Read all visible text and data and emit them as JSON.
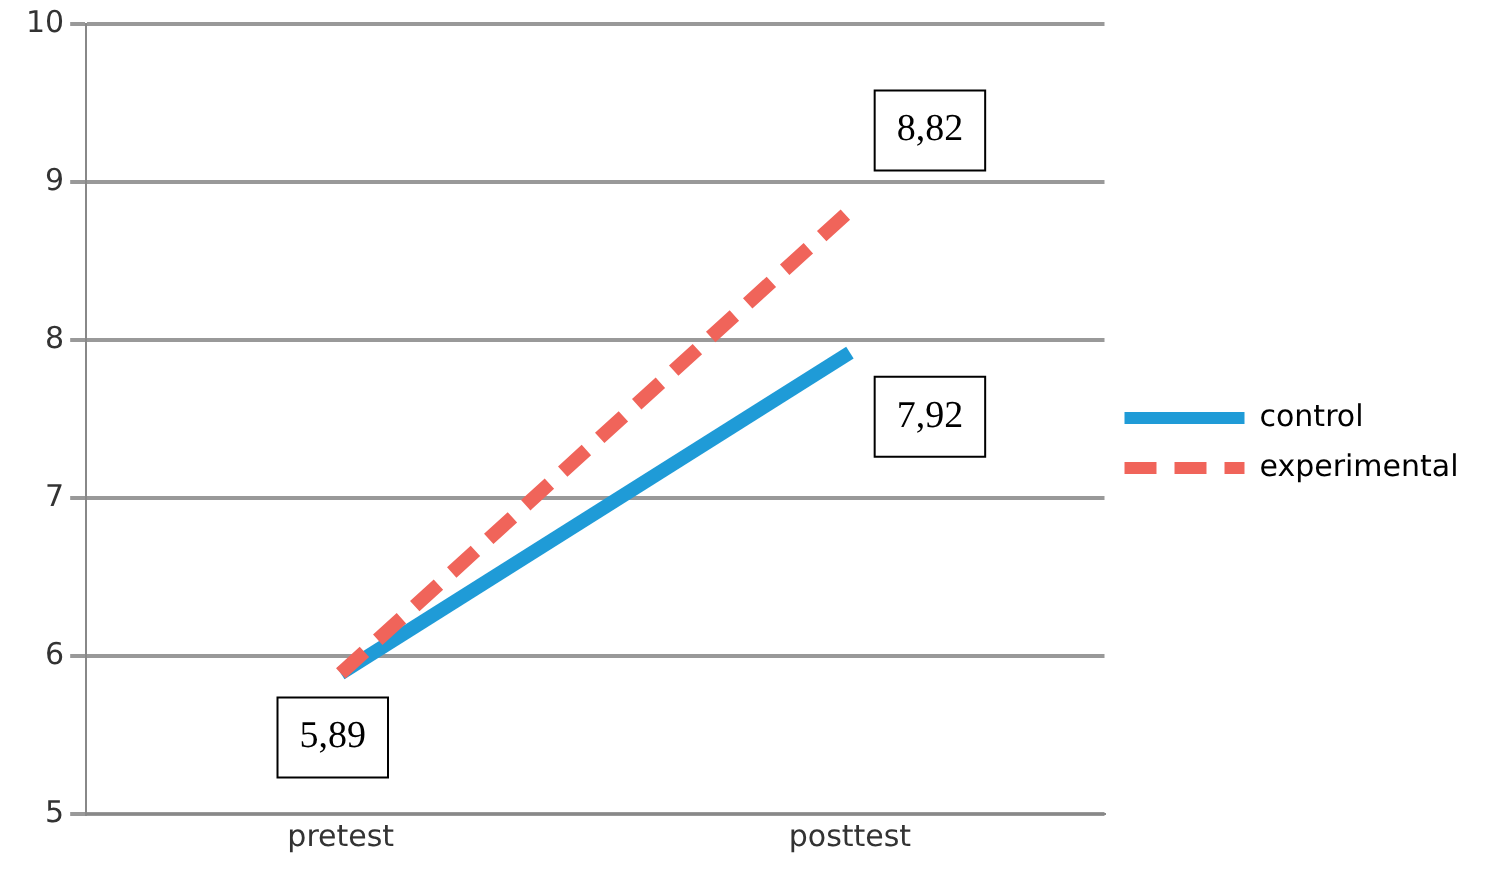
{
  "chart_data": {
    "type": "line",
    "categories": [
      "pretest",
      "posttest"
    ],
    "series": [
      {
        "name": "control",
        "color": "#1f9bd7",
        "values": [
          5.89,
          7.92
        ],
        "line_style": "solid",
        "value_labels": [
          "5,89",
          "7,92"
        ]
      },
      {
        "name": "experimental",
        "color": "#f0645a",
        "values": [
          5.89,
          8.82
        ],
        "line_style": "dashed",
        "value_labels": [
          null,
          "8,82"
        ]
      }
    ],
    "ylim": [
      5,
      10
    ],
    "yticks": [
      5,
      6,
      7,
      8,
      9,
      10
    ],
    "grid": "y",
    "legend": "right",
    "marker": "none"
  }
}
